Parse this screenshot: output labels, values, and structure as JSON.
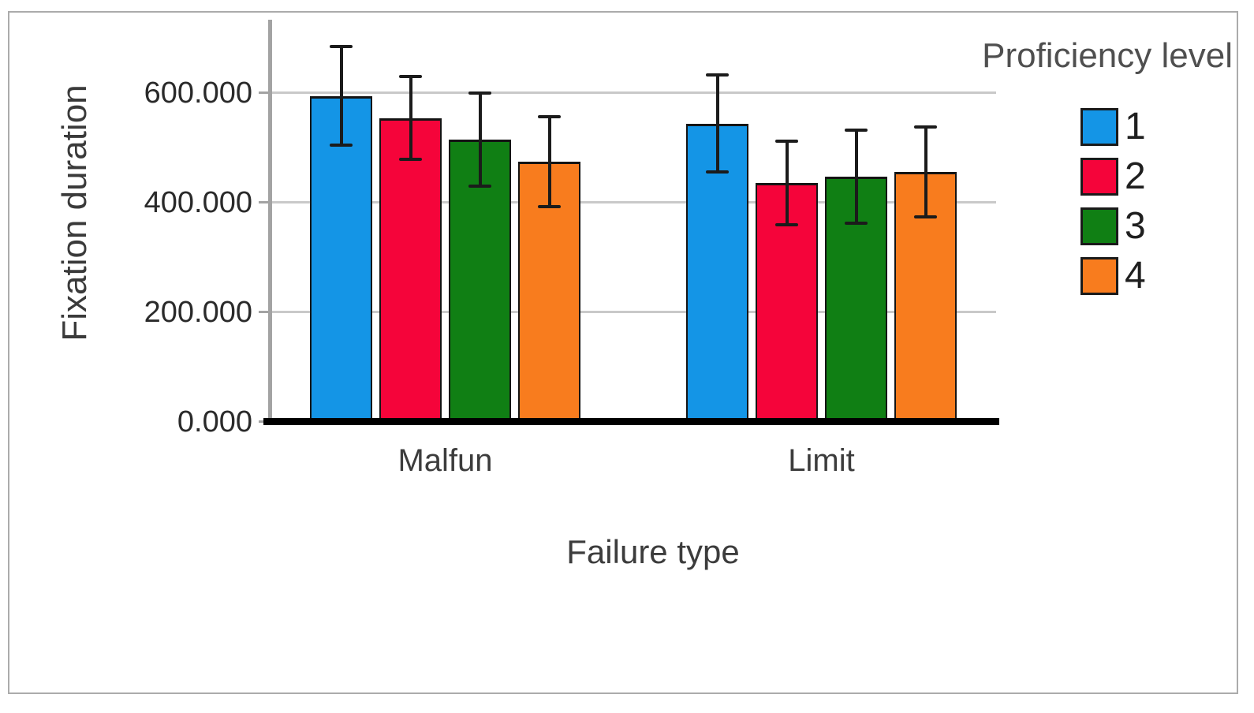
{
  "figure": {
    "background": "#ffffff",
    "frame_border_color": "#ABABAB"
  },
  "chart_data": {
    "type": "bar",
    "title": "",
    "categories": [
      "Malfun",
      "Limit"
    ],
    "series": [
      {
        "name": "1",
        "color": "#1495E6",
        "values": [
          595,
          545
        ],
        "errors": [
          93,
          92
        ]
      },
      {
        "name": "2",
        "color": "#F5043A",
        "values": [
          555,
          436
        ],
        "errors": [
          78,
          79
        ]
      },
      {
        "name": "3",
        "color": "#107F14",
        "values": [
          515,
          448
        ],
        "errors": [
          88,
          88
        ]
      },
      {
        "name": "4",
        "color": "#F87C1E",
        "values": [
          475,
          457
        ],
        "errors": [
          85,
          85
        ]
      }
    ],
    "xlabel": "Failure type",
    "ylabel": "Fixation duration",
    "yticks": [
      {
        "value": 600,
        "label": "600.000"
      },
      {
        "value": 400,
        "label": "400.000"
      },
      {
        "value": 200,
        "label": "200.000"
      },
      {
        "value": 0,
        "label": "0.000"
      }
    ],
    "ylim": [
      0,
      730
    ],
    "grid": true,
    "error_bars": true,
    "legend": {
      "title": "Proficiency level",
      "position": "top-right",
      "entries": [
        "1",
        "2",
        "3",
        "4"
      ]
    },
    "axis_colors": {
      "gridline": "#C9C9C9",
      "axis_line": "#A3A3A3",
      "baseline": "#000000",
      "error_bar": "#1b1b1b"
    }
  }
}
